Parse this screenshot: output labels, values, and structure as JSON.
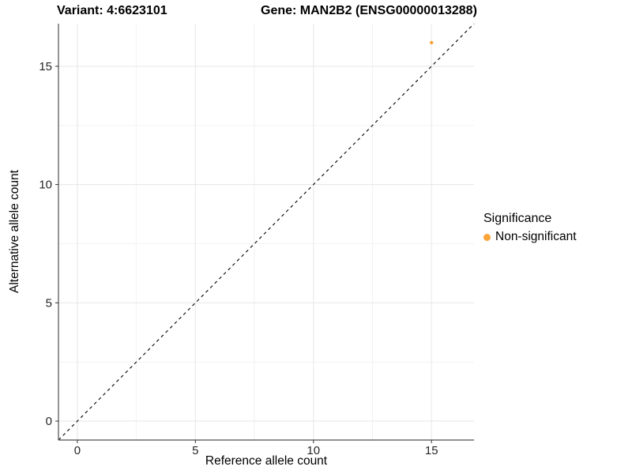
{
  "chart_data": {
    "type": "scatter",
    "titles": {
      "left": "Variant: 4:6623101",
      "right": "Gene: MAN2B2 (ENSG00000013288)"
    },
    "xlabel": "Reference allele count",
    "ylabel": "Alternative allele count",
    "xlim": [
      -0.8,
      16.8
    ],
    "ylim": [
      -0.8,
      16.8
    ],
    "x_major_ticks": [
      0,
      5,
      10,
      15
    ],
    "y_major_ticks": [
      0,
      5,
      10,
      15
    ],
    "x_minor_gridlines": [
      2.5,
      7.5,
      12.5
    ],
    "y_minor_gridlines": [
      2.5,
      7.5,
      12.5
    ],
    "grid": "major+minor",
    "identity_line": {
      "slope": 1,
      "intercept": 0,
      "style": "dashed",
      "color": "#000000"
    },
    "series": [
      {
        "name": "Non-significant",
        "color": "#FAA43A",
        "points": [
          [
            15,
            16
          ]
        ]
      }
    ],
    "legend": {
      "title": "Significance",
      "position": "right",
      "items": [
        {
          "label": "Non-significant",
          "color": "#FAA43A"
        }
      ]
    },
    "colors": {
      "background": "#FFFFFF",
      "grid_major": "#E6E6E6",
      "grid_minor": "#F2F2F2",
      "axis_line": "#4D4D4D",
      "tick_mark": "#333333",
      "tick_text": "#262626"
    }
  }
}
